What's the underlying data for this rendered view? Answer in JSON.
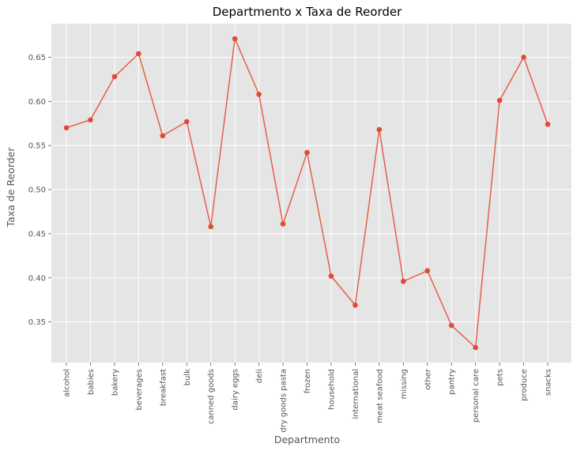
{
  "chart_data": {
    "type": "line",
    "title": "Departmento x Taxa de Reorder",
    "xlabel": "Departmento",
    "ylabel": "Taxa de Reorder",
    "categories": [
      "alcohol",
      "babies",
      "bakery",
      "beverages",
      "breakfast",
      "bulk",
      "canned goods",
      "dairy eggs",
      "deli",
      "dry goods pasta",
      "frozen",
      "household",
      "international",
      "meat seafood",
      "missing",
      "other",
      "pantry",
      "personal care",
      "pets",
      "produce",
      "snacks"
    ],
    "series": [
      {
        "values": [
          0.57,
          0.579,
          0.628,
          0.654,
          0.561,
          0.577,
          0.458,
          0.671,
          0.608,
          0.461,
          0.542,
          0.402,
          0.369,
          0.568,
          0.396,
          0.408,
          0.346,
          0.321,
          0.601,
          0.65,
          0.574
        ]
      }
    ],
    "yticks": [
      "0.35",
      "0.40",
      "0.45",
      "0.50",
      "0.55",
      "0.60",
      "0.65"
    ],
    "ylim": [
      0.304,
      0.688
    ],
    "grid": true,
    "style": "ggplot",
    "colors": {
      "line": "#e5604b",
      "marker": "#e24a33",
      "plot_bg": "#e5e5e5",
      "grid": "#ffffff",
      "text": "#555555"
    }
  }
}
